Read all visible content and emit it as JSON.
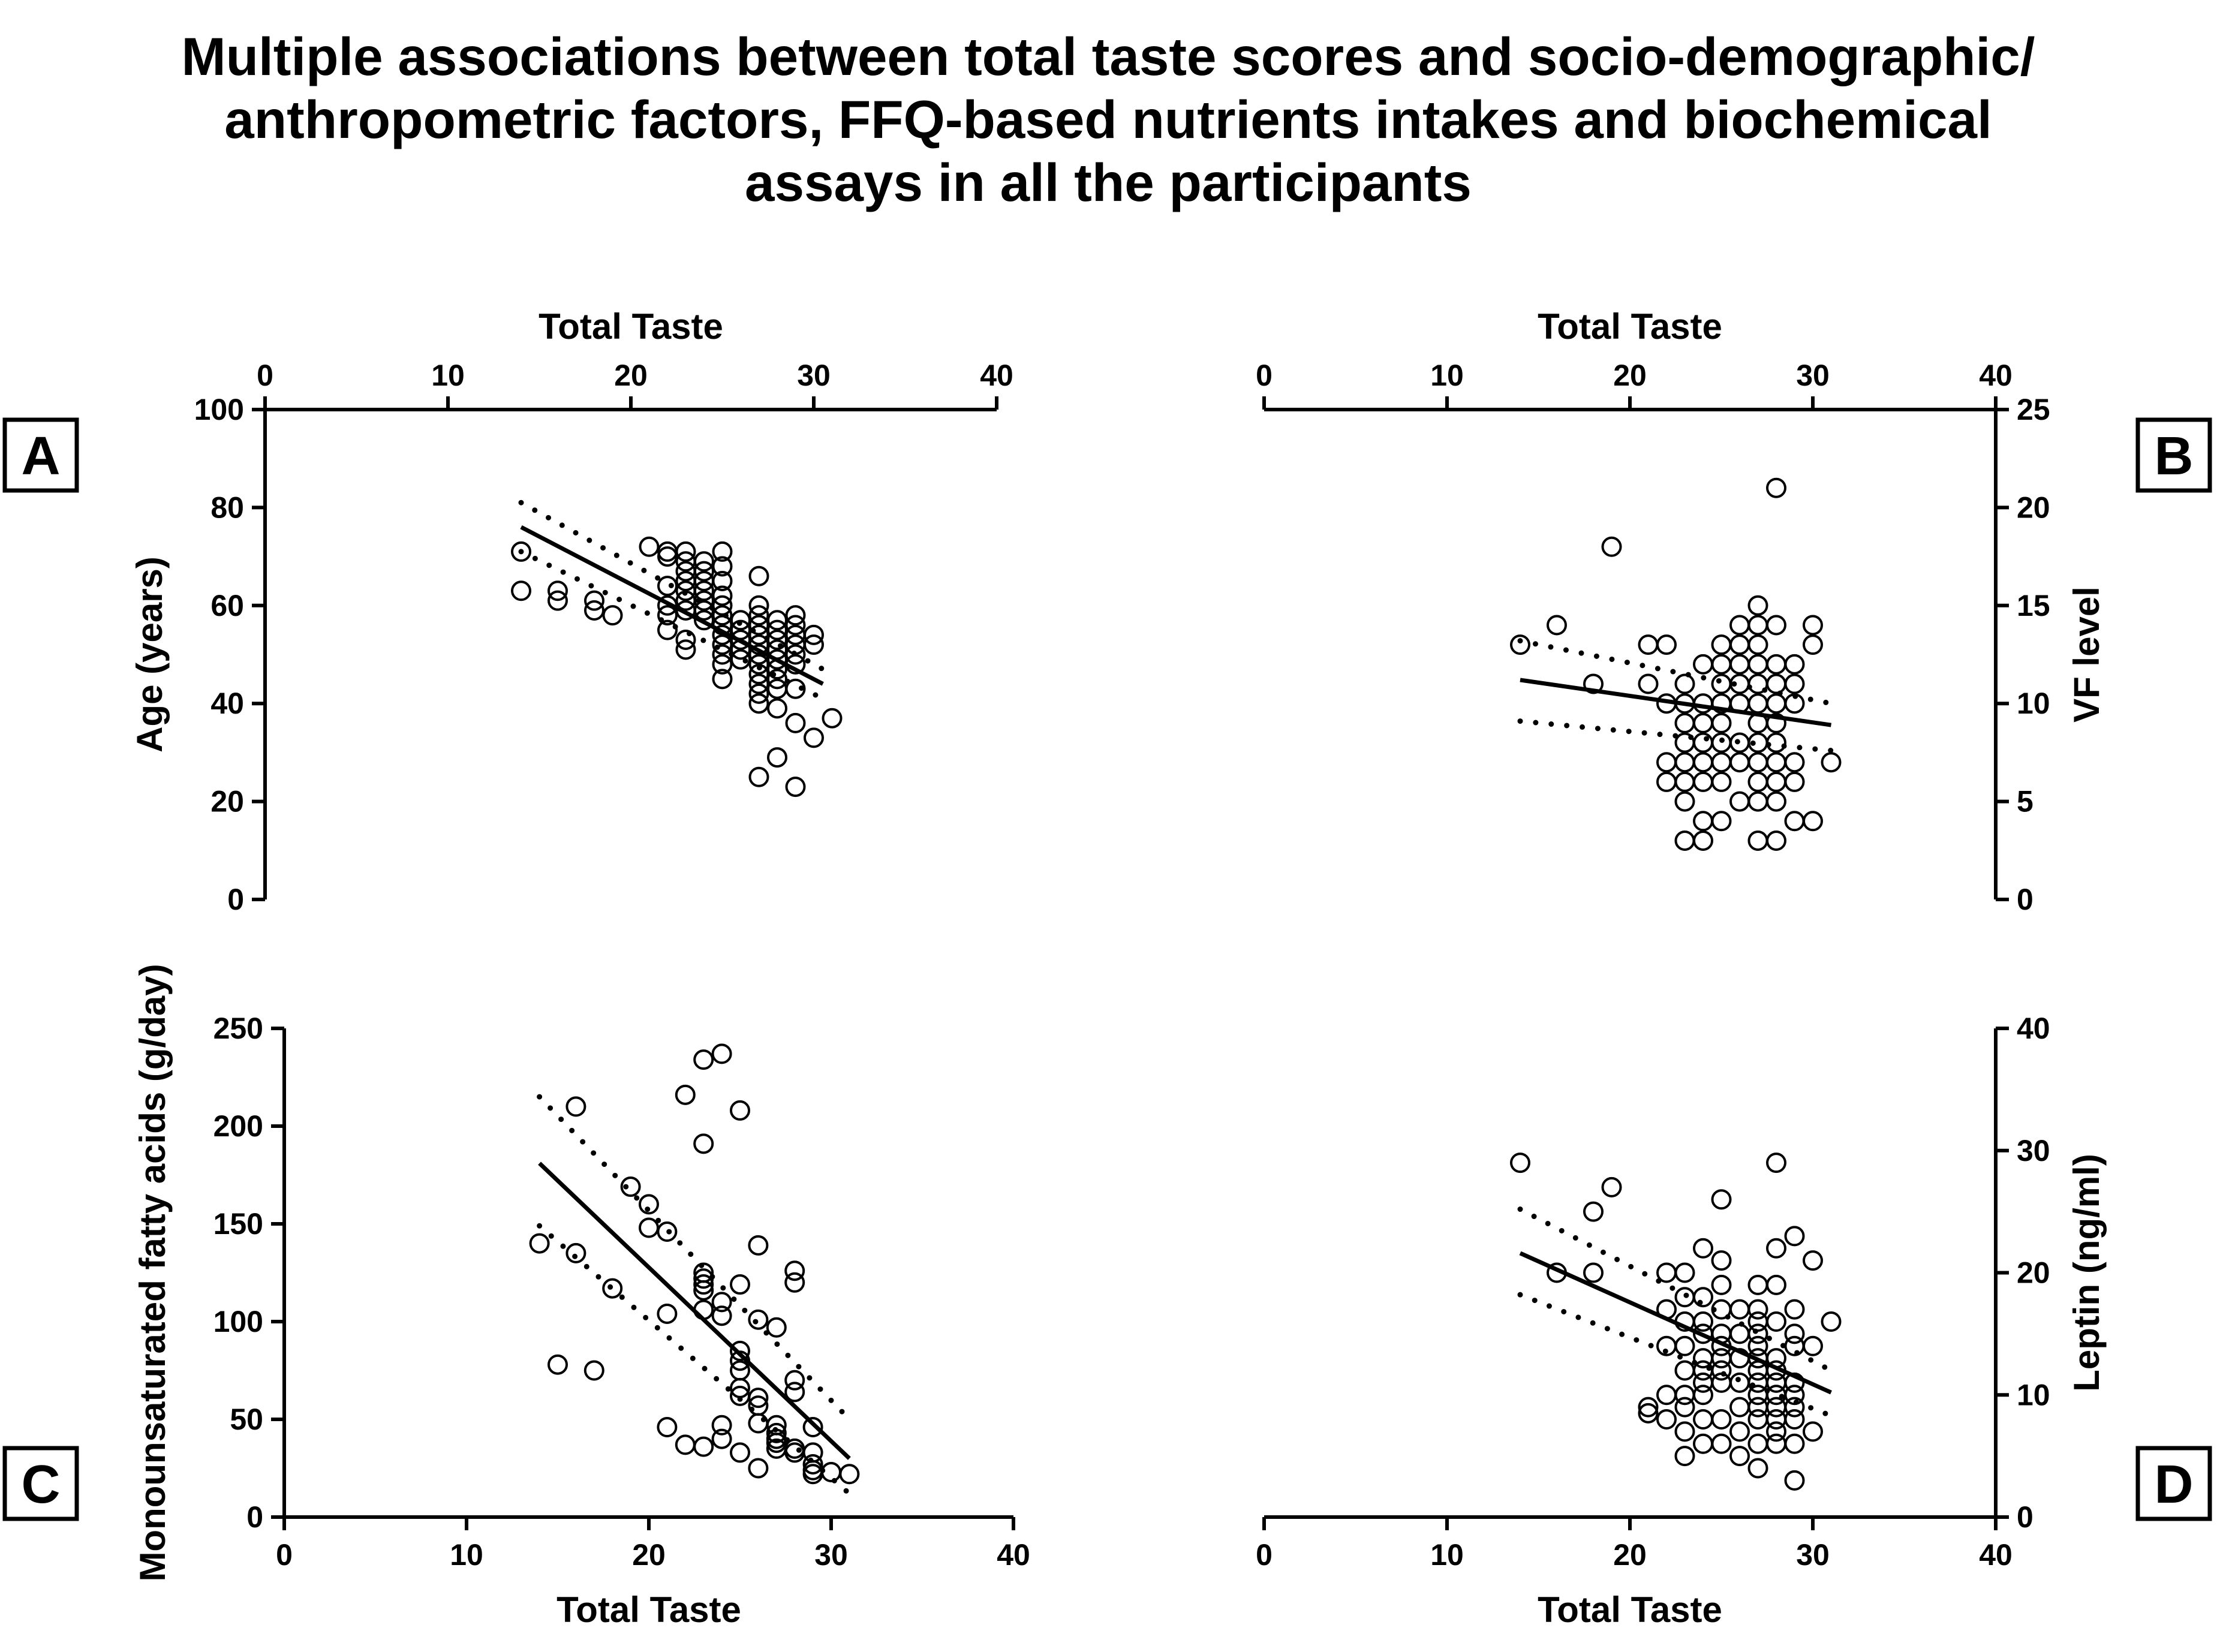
{
  "figure": {
    "title_lines": [
      "Multiple associations between total taste scores and socio-demographic/",
      "anthropometric factors, FFQ-based nutrients intakes and biochemical",
      "assays in all the participants"
    ]
  },
  "chart_data": [
    {
      "panel": "A",
      "type": "scatter",
      "xlabel": "Total Taste",
      "xaxis_position": "top",
      "ylabel": "Age (years)",
      "yaxis_side": "left",
      "xlim": [
        0,
        40
      ],
      "xticks": [
        0,
        10,
        20,
        30,
        40
      ],
      "ylim": [
        0,
        100
      ],
      "yticks": [
        0,
        20,
        40,
        60,
        80,
        100
      ],
      "regression": {
        "x": [
          14,
          30.5
        ],
        "y": [
          76,
          44
        ]
      },
      "ci_upper": {
        "x": [
          14,
          30.5
        ],
        "y": [
          81,
          47
        ]
      },
      "ci_lower": {
        "x": [
          14,
          30.5
        ],
        "y": [
          71,
          41
        ]
      },
      "points": [
        [
          14,
          71
        ],
        [
          14,
          63
        ],
        [
          16,
          63
        ],
        [
          16,
          61
        ],
        [
          18,
          61
        ],
        [
          18,
          59
        ],
        [
          19,
          58
        ],
        [
          21,
          72
        ],
        [
          22,
          71
        ],
        [
          22,
          70
        ],
        [
          22,
          64
        ],
        [
          22,
          60
        ],
        [
          22,
          58
        ],
        [
          22,
          55
        ],
        [
          23,
          71
        ],
        [
          23,
          69
        ],
        [
          23,
          67
        ],
        [
          23,
          65
        ],
        [
          23,
          63
        ],
        [
          23,
          61
        ],
        [
          23,
          59
        ],
        [
          23,
          53
        ],
        [
          23,
          51
        ],
        [
          24,
          69
        ],
        [
          24,
          67
        ],
        [
          24,
          65
        ],
        [
          24,
          63
        ],
        [
          24,
          61
        ],
        [
          24,
          59
        ],
        [
          24,
          57
        ],
        [
          25,
          71
        ],
        [
          25,
          68
        ],
        [
          25,
          65
        ],
        [
          25,
          62
        ],
        [
          25,
          60
        ],
        [
          25,
          58
        ],
        [
          25,
          56
        ],
        [
          25,
          54
        ],
        [
          25,
          52
        ],
        [
          25,
          50
        ],
        [
          25,
          48
        ],
        [
          25,
          45
        ],
        [
          26,
          57
        ],
        [
          26,
          55
        ],
        [
          26,
          53
        ],
        [
          26,
          51
        ],
        [
          26,
          49
        ],
        [
          27,
          66
        ],
        [
          27,
          60
        ],
        [
          27,
          58
        ],
        [
          27,
          56
        ],
        [
          27,
          54
        ],
        [
          27,
          52
        ],
        [
          27,
          50
        ],
        [
          27,
          48
        ],
        [
          27,
          46
        ],
        [
          27,
          44
        ],
        [
          27,
          42
        ],
        [
          27,
          40
        ],
        [
          27,
          25
        ],
        [
          28,
          57
        ],
        [
          28,
          55
        ],
        [
          28,
          53
        ],
        [
          28,
          51
        ],
        [
          28,
          49
        ],
        [
          28,
          47
        ],
        [
          28,
          45
        ],
        [
          28,
          43
        ],
        [
          28,
          39
        ],
        [
          28,
          29
        ],
        [
          29,
          58
        ],
        [
          29,
          56
        ],
        [
          29,
          54
        ],
        [
          29,
          52
        ],
        [
          29,
          50
        ],
        [
          29,
          48
        ],
        [
          29,
          43
        ],
        [
          29,
          36
        ],
        [
          29,
          23
        ],
        [
          30,
          54
        ],
        [
          30,
          52
        ],
        [
          30,
          33
        ],
        [
          31,
          37
        ]
      ]
    },
    {
      "panel": "B",
      "type": "scatter",
      "xlabel": "Total Taste",
      "xaxis_position": "top",
      "ylabel": "VF level",
      "yaxis_side": "right",
      "xlim": [
        0,
        40
      ],
      "xticks": [
        0,
        10,
        20,
        30,
        40
      ],
      "ylim": [
        0,
        25
      ],
      "yticks": [
        0,
        5,
        10,
        15,
        20,
        25
      ],
      "regression": {
        "x": [
          14,
          31
        ],
        "y": [
          11.2,
          8.9
        ]
      },
      "ci_upper": {
        "x": [
          14,
          31
        ],
        "y": [
          13.2,
          10.0
        ]
      },
      "ci_lower": {
        "x": [
          14,
          31
        ],
        "y": [
          9.1,
          7.6
        ]
      },
      "points": [
        [
          14,
          13
        ],
        [
          16,
          14
        ],
        [
          18,
          11
        ],
        [
          19,
          18
        ],
        [
          21,
          13
        ],
        [
          21,
          11
        ],
        [
          22,
          13
        ],
        [
          22,
          10
        ],
        [
          22,
          7
        ],
        [
          22,
          6
        ],
        [
          23,
          11
        ],
        [
          23,
          10
        ],
        [
          23,
          9
        ],
        [
          23,
          8
        ],
        [
          23,
          7
        ],
        [
          23,
          6
        ],
        [
          23,
          5
        ],
        [
          23,
          3
        ],
        [
          24,
          12
        ],
        [
          24,
          10
        ],
        [
          24,
          9
        ],
        [
          24,
          8
        ],
        [
          24,
          7
        ],
        [
          24,
          6
        ],
        [
          24,
          4
        ],
        [
          24,
          3
        ],
        [
          25,
          13
        ],
        [
          25,
          12
        ],
        [
          25,
          11
        ],
        [
          25,
          10
        ],
        [
          25,
          9
        ],
        [
          25,
          8
        ],
        [
          25,
          7
        ],
        [
          25,
          6
        ],
        [
          25,
          4
        ],
        [
          26,
          14
        ],
        [
          26,
          13
        ],
        [
          26,
          12
        ],
        [
          26,
          11
        ],
        [
          26,
          10
        ],
        [
          26,
          8
        ],
        [
          26,
          7
        ],
        [
          26,
          5
        ],
        [
          27,
          15
        ],
        [
          27,
          14
        ],
        [
          27,
          13
        ],
        [
          27,
          12
        ],
        [
          27,
          11
        ],
        [
          27,
          10
        ],
        [
          27,
          9
        ],
        [
          27,
          8
        ],
        [
          27,
          7
        ],
        [
          27,
          6
        ],
        [
          27,
          5
        ],
        [
          27,
          3
        ],
        [
          28,
          21
        ],
        [
          28,
          14
        ],
        [
          28,
          12
        ],
        [
          28,
          11
        ],
        [
          28,
          10
        ],
        [
          28,
          9
        ],
        [
          28,
          8
        ],
        [
          28,
          7
        ],
        [
          28,
          6
        ],
        [
          28,
          5
        ],
        [
          28,
          3
        ],
        [
          29,
          12
        ],
        [
          29,
          11
        ],
        [
          29,
          10
        ],
        [
          29,
          7
        ],
        [
          29,
          6
        ],
        [
          29,
          4
        ],
        [
          30,
          14
        ],
        [
          30,
          13
        ],
        [
          30,
          4
        ],
        [
          31,
          7
        ]
      ]
    },
    {
      "panel": "C",
      "type": "scatter",
      "xlabel": "Total Taste",
      "xaxis_position": "bottom",
      "ylabel": "Monounsaturated fatty acids (g/day)",
      "yaxis_side": "left",
      "xlim": [
        0,
        40
      ],
      "xticks": [
        0,
        10,
        20,
        30,
        40
      ],
      "ylim": [
        0,
        250
      ],
      "yticks": [
        0,
        50,
        100,
        150,
        200,
        250
      ],
      "regression": {
        "x": [
          14,
          31
        ],
        "y": [
          181,
          30
        ]
      },
      "ci_upper": {
        "x": [
          14,
          31
        ],
        "y": [
          215,
          50
        ]
      },
      "ci_lower": {
        "x": [
          14,
          31
        ],
        "y": [
          149,
          12
        ]
      },
      "points": [
        [
          14,
          140
        ],
        [
          15,
          78
        ],
        [
          16,
          210
        ],
        [
          16,
          135
        ],
        [
          17,
          75
        ],
        [
          18,
          117
        ],
        [
          19,
          169
        ],
        [
          20,
          160
        ],
        [
          20,
          148
        ],
        [
          21,
          146
        ],
        [
          21,
          104
        ],
        [
          21,
          46
        ],
        [
          22,
          216
        ],
        [
          22,
          37
        ],
        [
          23,
          234
        ],
        [
          23,
          191
        ],
        [
          23,
          125
        ],
        [
          23,
          122
        ],
        [
          23,
          119
        ],
        [
          23,
          116
        ],
        [
          23,
          106
        ],
        [
          23,
          36
        ],
        [
          24,
          237
        ],
        [
          24,
          110
        ],
        [
          24,
          103
        ],
        [
          24,
          47
        ],
        [
          24,
          40
        ],
        [
          25,
          208
        ],
        [
          25,
          119
        ],
        [
          25,
          85
        ],
        [
          25,
          80
        ],
        [
          25,
          75
        ],
        [
          25,
          66
        ],
        [
          25,
          62
        ],
        [
          25,
          33
        ],
        [
          26,
          139
        ],
        [
          26,
          101
        ],
        [
          26,
          61
        ],
        [
          26,
          57
        ],
        [
          26,
          48
        ],
        [
          26,
          25
        ],
        [
          27,
          97
        ],
        [
          27,
          47
        ],
        [
          27,
          43
        ],
        [
          27,
          40
        ],
        [
          27,
          38
        ],
        [
          27,
          35
        ],
        [
          28,
          126
        ],
        [
          28,
          120
        ],
        [
          28,
          70
        ],
        [
          28,
          64
        ],
        [
          28,
          35
        ],
        [
          28,
          33
        ],
        [
          29,
          46
        ],
        [
          29,
          33
        ],
        [
          29,
          27
        ],
        [
          29,
          24
        ],
        [
          29,
          22
        ],
        [
          30,
          23
        ],
        [
          31,
          22
        ]
      ]
    },
    {
      "panel": "D",
      "type": "scatter",
      "xlabel": "Total Taste",
      "xaxis_position": "bottom",
      "ylabel": "Leptin (ng/ml)",
      "yaxis_side": "right",
      "xlim": [
        0,
        40
      ],
      "xticks": [
        0,
        10,
        20,
        30,
        40
      ],
      "ylim": [
        0,
        40
      ],
      "yticks": [
        0,
        10,
        20,
        30,
        40
      ],
      "regression": {
        "x": [
          14,
          31
        ],
        "y": [
          21.6,
          10.2
        ]
      },
      "ci_upper": {
        "x": [
          14,
          31
        ],
        "y": [
          25.2,
          12.0
        ]
      },
      "ci_lower": {
        "x": [
          14,
          31
        ],
        "y": [
          18.2,
          8.3
        ]
      },
      "points": [
        [
          14,
          29
        ],
        [
          16,
          20
        ],
        [
          18,
          25
        ],
        [
          18,
          20
        ],
        [
          19,
          27
        ],
        [
          21,
          9
        ],
        [
          21,
          8.5
        ],
        [
          22,
          20
        ],
        [
          22,
          17
        ],
        [
          22,
          14
        ],
        [
          22,
          10
        ],
        [
          22,
          8
        ],
        [
          23,
          20
        ],
        [
          23,
          18
        ],
        [
          23,
          16
        ],
        [
          23,
          14
        ],
        [
          23,
          12
        ],
        [
          23,
          10
        ],
        [
          23,
          9
        ],
        [
          23,
          7
        ],
        [
          23,
          5
        ],
        [
          24,
          22
        ],
        [
          24,
          18
        ],
        [
          24,
          16
        ],
        [
          24,
          15
        ],
        [
          24,
          13
        ],
        [
          24,
          12
        ],
        [
          24,
          11
        ],
        [
          24,
          10
        ],
        [
          24,
          8
        ],
        [
          24,
          6
        ],
        [
          25,
          26
        ],
        [
          25,
          21
        ],
        [
          25,
          19
        ],
        [
          25,
          17
        ],
        [
          25,
          15
        ],
        [
          25,
          14
        ],
        [
          25,
          13
        ],
        [
          25,
          12
        ],
        [
          25,
          11
        ],
        [
          25,
          8
        ],
        [
          25,
          6
        ],
        [
          26,
          17
        ],
        [
          26,
          15
        ],
        [
          26,
          13
        ],
        [
          26,
          11
        ],
        [
          26,
          9
        ],
        [
          26,
          7
        ],
        [
          26,
          5
        ],
        [
          27,
          19
        ],
        [
          27,
          17
        ],
        [
          27,
          16
        ],
        [
          27,
          15
        ],
        [
          27,
          14
        ],
        [
          27,
          13
        ],
        [
          27,
          12
        ],
        [
          27,
          11
        ],
        [
          27,
          10
        ],
        [
          27,
          9
        ],
        [
          27,
          8
        ],
        [
          27,
          6
        ],
        [
          27,
          4
        ],
        [
          28,
          29
        ],
        [
          28,
          22
        ],
        [
          28,
          19
        ],
        [
          28,
          16
        ],
        [
          28,
          13
        ],
        [
          28,
          12
        ],
        [
          28,
          11
        ],
        [
          28,
          10
        ],
        [
          28,
          9
        ],
        [
          28,
          8
        ],
        [
          28,
          7
        ],
        [
          28,
          6
        ],
        [
          29,
          23
        ],
        [
          29,
          17
        ],
        [
          29,
          15
        ],
        [
          29,
          14
        ],
        [
          29,
          11
        ],
        [
          29,
          10
        ],
        [
          29,
          9
        ],
        [
          29,
          8
        ],
        [
          29,
          6
        ],
        [
          29,
          3
        ],
        [
          30,
          21
        ],
        [
          30,
          14
        ],
        [
          30,
          7
        ],
        [
          31,
          16
        ]
      ]
    }
  ]
}
